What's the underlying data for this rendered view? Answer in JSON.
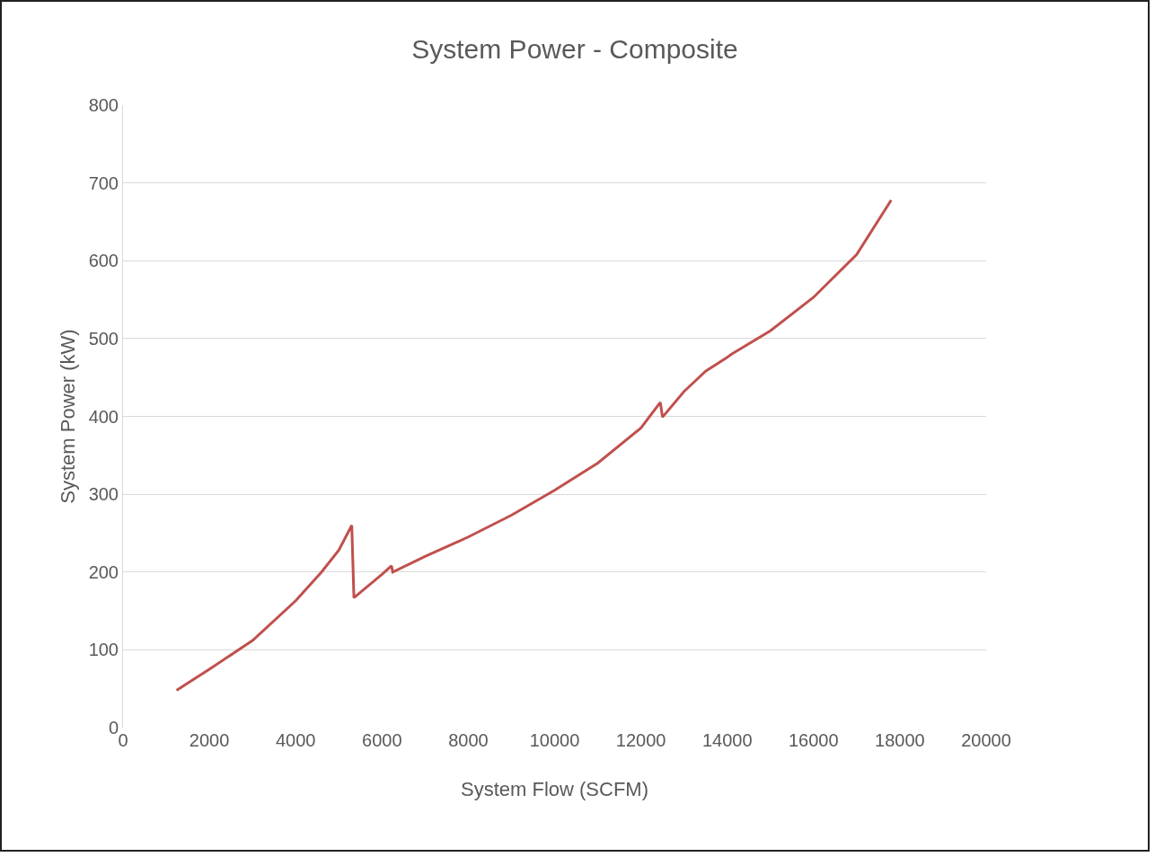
{
  "chart_data": {
    "type": "line",
    "title": "System Power - Composite",
    "xlabel": "System Flow (SCFM)",
    "ylabel": "System Power (kW)",
    "series": [
      {
        "color": "#c0504d",
        "x": [
          1240,
          2000,
          3000,
          4000,
          4600,
          5000,
          5300,
          5350,
          6000,
          6220,
          6250,
          7000,
          8000,
          9000,
          10000,
          11000,
          12000,
          12450,
          12500,
          13000,
          13500,
          14000,
          14100,
          15000,
          16000,
          17000,
          17800
        ],
        "values": [
          48,
          75,
          112,
          163,
          200,
          228,
          260,
          167,
          197,
          208,
          200,
          220,
          245,
          273,
          305,
          340,
          385,
          418,
          399,
          432,
          458,
          476,
          480,
          510,
          553,
          608,
          678
        ]
      }
    ],
    "xlim": [
      0,
      20000
    ],
    "xticks": [
      0,
      2000,
      4000,
      6000,
      8000,
      10000,
      12000,
      14000,
      16000,
      18000,
      20000
    ],
    "ylim": [
      0,
      800
    ],
    "yticks": [
      0,
      100,
      200,
      300,
      400,
      500,
      600,
      700,
      800
    ],
    "grid": "y",
    "marker": "none",
    "line_style": "solid"
  }
}
